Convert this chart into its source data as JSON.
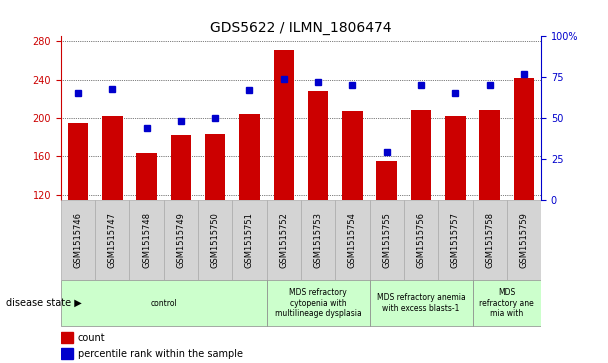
{
  "title": "GDS5622 / ILMN_1806474",
  "samples": [
    "GSM1515746",
    "GSM1515747",
    "GSM1515748",
    "GSM1515749",
    "GSM1515750",
    "GSM1515751",
    "GSM1515752",
    "GSM1515753",
    "GSM1515754",
    "GSM1515755",
    "GSM1515756",
    "GSM1515757",
    "GSM1515758",
    "GSM1515759"
  ],
  "counts": [
    195,
    202,
    164,
    182,
    183,
    204,
    271,
    228,
    207,
    155,
    208,
    202,
    208,
    242
  ],
  "percentiles": [
    65,
    68,
    44,
    48,
    50,
    67,
    74,
    72,
    70,
    29,
    70,
    65,
    70,
    77
  ],
  "ylim_left": [
    115,
    285
  ],
  "ylim_right": [
    0,
    100
  ],
  "yticks_left": [
    120,
    160,
    200,
    240,
    280
  ],
  "yticks_right": [
    0,
    25,
    50,
    75,
    100
  ],
  "bar_color": "#cc0000",
  "dot_color": "#0000cc",
  "sample_box_color": "#d4d4d4",
  "disease_groups": [
    {
      "label": "control",
      "start": 0,
      "end": 6,
      "color": "#ccffcc"
    },
    {
      "label": "MDS refractory\ncytopenia with\nmultilineage dysplasia",
      "start": 6,
      "end": 9,
      "color": "#ccffcc"
    },
    {
      "label": "MDS refractory anemia\nwith excess blasts-1",
      "start": 9,
      "end": 12,
      "color": "#ccffcc"
    },
    {
      "label": "MDS\nrefractory ane\nmia with",
      "start": 12,
      "end": 14,
      "color": "#ccffcc"
    }
  ],
  "disease_state_label": "disease state",
  "legend_count": "count",
  "legend_pct": "percentile rank within the sample",
  "title_fontsize": 10,
  "tick_fontsize": 7,
  "sample_fontsize": 6
}
